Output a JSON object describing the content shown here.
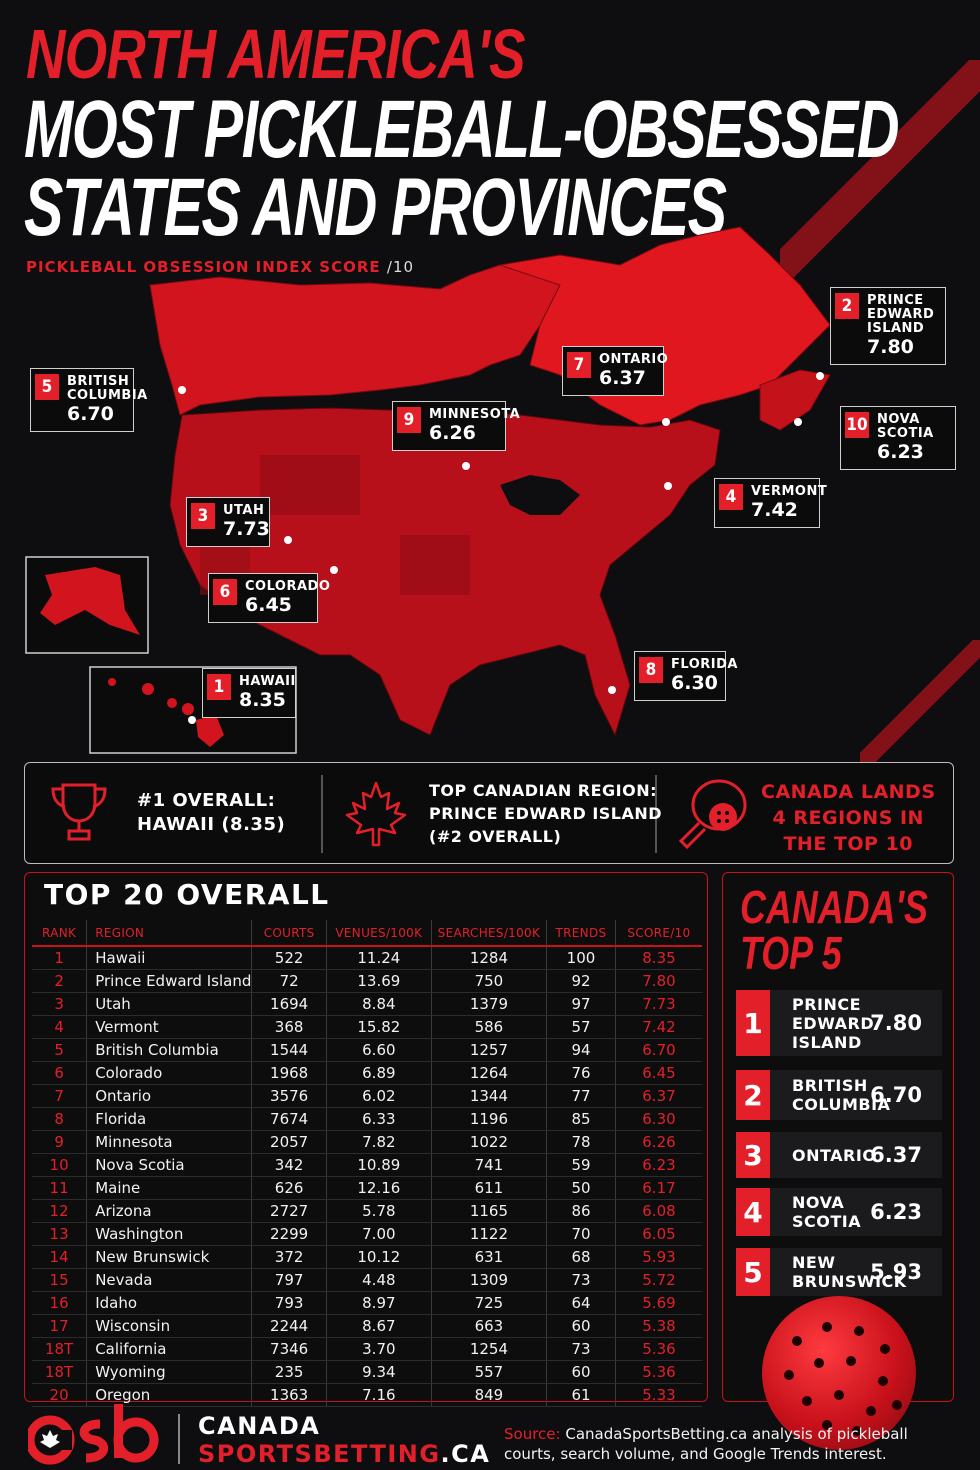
{
  "header": {
    "title_line1": "NORTH AMERICA'S",
    "title_line2": "MOST PICKLEBALL-OBSESSED",
    "title_line3": "STATES AND PROVINCES",
    "subtitle": "PICKLEBALL OBSESSION INDEX SCORE",
    "subtitle_unit": "/10"
  },
  "map_callouts": [
    {
      "rank": "1",
      "name": "HAWAII",
      "score": "8.35"
    },
    {
      "rank": "2",
      "name": "PRINCE\nEDWARD\nISLAND",
      "score": "7.80"
    },
    {
      "rank": "3",
      "name": "UTAH",
      "score": "7.73"
    },
    {
      "rank": "4",
      "name": "VERMONT",
      "score": "7.42"
    },
    {
      "rank": "5",
      "name": "BRITISH\nCOLUMBIA",
      "score": "6.70"
    },
    {
      "rank": "6",
      "name": "COLORADO",
      "score": "6.45"
    },
    {
      "rank": "7",
      "name": "ONTARIO",
      "score": "6.37"
    },
    {
      "rank": "8",
      "name": "FLORIDA",
      "score": "6.30"
    },
    {
      "rank": "9",
      "name": "MINNESOTA",
      "score": "6.26"
    },
    {
      "rank": "10",
      "name": "NOVA SCOTIA",
      "score": "6.23"
    }
  ],
  "stats": {
    "stat1_l1": "#1 OVERALL:",
    "stat1_l2": "HAWAII (8.35)",
    "stat2_l1": "TOP CANADIAN REGION:",
    "stat2_l2": "PRINCE EDWARD ISLAND",
    "stat2_l3": "(#2 OVERALL)",
    "stat3_l1": "CANADA LANDS",
    "stat3_l2": "4 REGIONS IN",
    "stat3_l3": "THE TOP 10"
  },
  "chart_data": {
    "type": "table",
    "title": "TOP 20 OVERALL",
    "columns": [
      "RANK",
      "REGION",
      "COURTS",
      "VENUES/100K",
      "SEARCHES/100K",
      "TRENDS",
      "SCORE/10"
    ],
    "rows": [
      [
        "1",
        "Hawaii",
        "522",
        "11.24",
        "1284",
        "100",
        "8.35"
      ],
      [
        "2",
        "Prince Edward Island",
        "72",
        "13.69",
        "750",
        "92",
        "7.80"
      ],
      [
        "3",
        "Utah",
        "1694",
        "8.84",
        "1379",
        "97",
        "7.73"
      ],
      [
        "4",
        "Vermont",
        "368",
        "15.82",
        "586",
        "57",
        "7.42"
      ],
      [
        "5",
        "British Columbia",
        "1544",
        "6.60",
        "1257",
        "94",
        "6.70"
      ],
      [
        "6",
        "Colorado",
        "1968",
        "6.89",
        "1264",
        "76",
        "6.45"
      ],
      [
        "7",
        "Ontario",
        "3576",
        "6.02",
        "1344",
        "77",
        "6.37"
      ],
      [
        "8",
        "Florida",
        "7674",
        "6.33",
        "1196",
        "85",
        "6.30"
      ],
      [
        "9",
        "Minnesota",
        "2057",
        "7.82",
        "1022",
        "78",
        "6.26"
      ],
      [
        "10",
        "Nova Scotia",
        "342",
        "10.89",
        "741",
        "59",
        "6.23"
      ],
      [
        "11",
        "Maine",
        "626",
        "12.16",
        "611",
        "50",
        "6.17"
      ],
      [
        "12",
        "Arizona",
        "2727",
        "5.78",
        "1165",
        "86",
        "6.08"
      ],
      [
        "13",
        "Washington",
        "2299",
        "7.00",
        "1122",
        "70",
        "6.05"
      ],
      [
        "14",
        "New Brunswick",
        "372",
        "10.12",
        "631",
        "68",
        "5.93"
      ],
      [
        "15",
        "Nevada",
        "797",
        "4.48",
        "1309",
        "73",
        "5.72"
      ],
      [
        "16",
        "Idaho",
        "793",
        "8.97",
        "725",
        "64",
        "5.69"
      ],
      [
        "17",
        "Wisconsin",
        "2244",
        "8.67",
        "663",
        "60",
        "5.38"
      ],
      [
        "18T",
        "California",
        "7346",
        "3.70",
        "1254",
        "73",
        "5.36"
      ],
      [
        "18T",
        "Wyoming",
        "235",
        "9.34",
        "557",
        "60",
        "5.36"
      ],
      [
        "20",
        "Oregon",
        "1363",
        "7.16",
        "849",
        "61",
        "5.33"
      ]
    ]
  },
  "canada_top5": {
    "title_l1": "CANADA'S",
    "title_l2": "TOP 5",
    "items": [
      {
        "rank": "1",
        "name": "PRINCE\nEDWARD\nISLAND",
        "score": "7.80"
      },
      {
        "rank": "2",
        "name": "BRITISH\nCOLUMBIA",
        "score": "6.70"
      },
      {
        "rank": "3",
        "name": "ONTARIO",
        "score": "6.37"
      },
      {
        "rank": "4",
        "name": "NOVA\nSCOTIA",
        "score": "6.23"
      },
      {
        "rank": "5",
        "name": "NEW\nBRUNSWICK",
        "score": "5.93"
      }
    ]
  },
  "footer": {
    "logo": "csb",
    "brand_l1": "CANADA",
    "brand_l2a": "SPORTSBETTING",
    "brand_l2b": ".CA",
    "source_label": "Source:",
    "source_text": "CanadaSportsBetting.ca analysis of pickleball courts, search volume, and Google Trends interest."
  },
  "colors": {
    "accent": "#e3202a",
    "background": "#0e0e10",
    "map_base": "#d1141d"
  }
}
